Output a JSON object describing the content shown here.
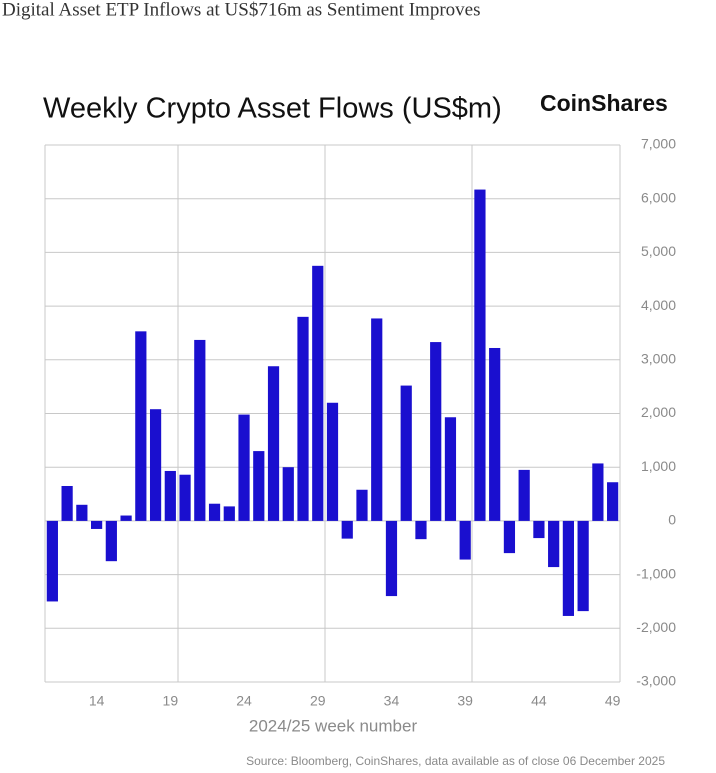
{
  "headline": "Digital Asset ETP Inflows at US$716m as Sentiment Improves",
  "chart_data": {
    "type": "bar",
    "title": "Weekly Crypto Asset Flows (US$m)",
    "brand": "CoinShares",
    "x_label": "2024/25 week number",
    "source": "Source: Bloomberg, CoinShares, data available as of close 06 December 2025",
    "categories": [
      null,
      null,
      null,
      14,
      null,
      null,
      null,
      null,
      19,
      null,
      null,
      null,
      null,
      24,
      null,
      null,
      null,
      null,
      29,
      null,
      null,
      null,
      null,
      34,
      null,
      null,
      null,
      null,
      39,
      null,
      null,
      null,
      null,
      44,
      null,
      null,
      null,
      null,
      49
    ],
    "values": [
      -1500,
      650,
      300,
      -150,
      -750,
      100,
      3530,
      2080,
      930,
      860,
      3370,
      320,
      270,
      1980,
      1300,
      2880,
      1000,
      3800,
      4750,
      2200,
      -330,
      580,
      3770,
      -1400,
      2520,
      -340,
      3330,
      1930,
      -720,
      6170,
      3220,
      -600,
      950,
      -320,
      -860,
      -1770,
      -1680,
      1070,
      720
    ],
    "color": "#1a0fcf",
    "ylim": [
      -3000,
      7000
    ],
    "yticks": [
      {
        "value": -3000,
        "label": "-3,000"
      },
      {
        "value": -2000,
        "label": "-2,000"
      },
      {
        "value": -1000,
        "label": "-1,000"
      },
      0,
      {
        "value": 1000,
        "label": "1,000"
      },
      {
        "value": 2000,
        "label": "2,000"
      },
      {
        "value": 3000,
        "label": "3,000"
      },
      {
        "value": 4000,
        "label": "4,000"
      },
      {
        "value": 5000,
        "label": "5,000"
      },
      {
        "value": 6000,
        "label": "6,000"
      },
      {
        "value": 7000,
        "label": "7,000"
      }
    ],
    "grid": true
  }
}
